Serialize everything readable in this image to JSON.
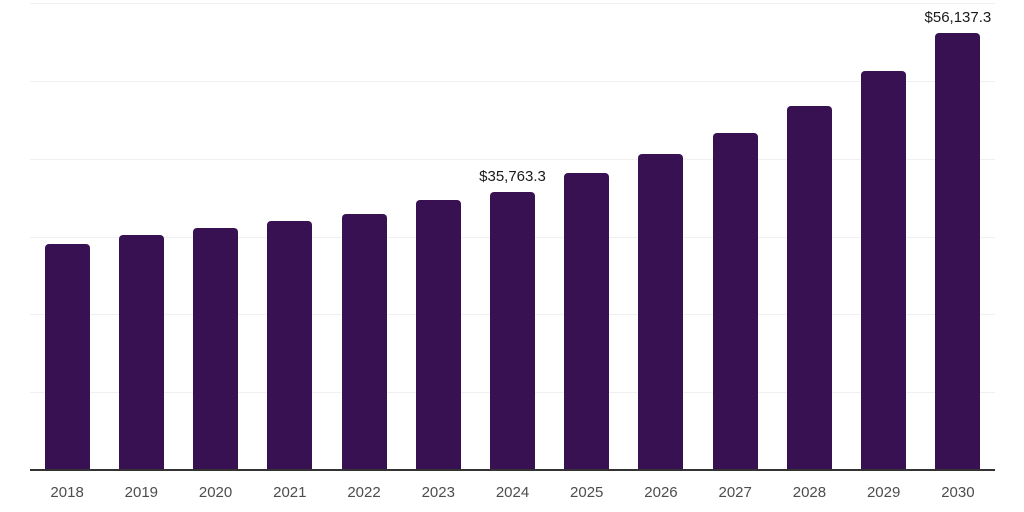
{
  "chart_data": {
    "type": "bar",
    "title": "",
    "xlabel": "",
    "ylabel": "",
    "categories": [
      "2018",
      "2019",
      "2020",
      "2021",
      "2022",
      "2023",
      "2024",
      "2025",
      "2026",
      "2027",
      "2028",
      "2029",
      "2030"
    ],
    "values": [
      29100,
      30250,
      31150,
      32050,
      32950,
      34650,
      35763.3,
      38100,
      40550,
      43250,
      46750,
      51250,
      56137.3
    ],
    "data_labels": [
      {
        "category": "2024",
        "text": "$35,763.3"
      },
      {
        "category": "2030",
        "text": "$56,137.3"
      }
    ],
    "ylim": [
      0,
      60000
    ],
    "gridline_interval": 10000,
    "grid": "horizontal",
    "legend": "none",
    "y_axis_tick_labels": "none",
    "colors": {
      "bar": "#381153",
      "axis_line": "#333333",
      "gridline": "#f0f0f0",
      "x_tick_label": "#4d4d4d",
      "value_label": "#1a1a1a",
      "background": "#ffffff"
    }
  }
}
